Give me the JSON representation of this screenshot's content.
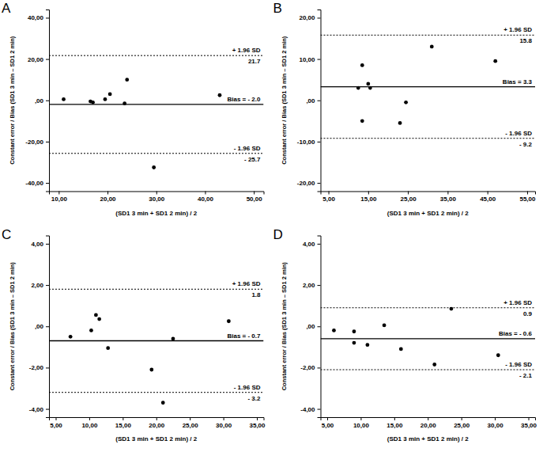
{
  "chart_data": [
    {
      "type": "scatter",
      "panel_label": "A",
      "x_label": "(SD1 3 min + SD1 2 min) / 2",
      "y_label": "Constant error / Bias (SD1 3 min – SD1 2 min)",
      "x": [
        11,
        16.5,
        17,
        19.5,
        20.5,
        23.5,
        24,
        29.5,
        43
      ],
      "values": [
        0.5,
        -0.5,
        -1,
        0.5,
        3,
        -1.5,
        10,
        -32.5,
        2.5
      ],
      "color": "#000000",
      "marker": "circle",
      "xlim": [
        8,
        52
      ],
      "xticks": [
        {
          "value": 10,
          "label": "10,00"
        },
        {
          "value": 20,
          "label": "20,00"
        },
        {
          "value": 30,
          "label": "30,00"
        },
        {
          "value": 40,
          "label": "40,00"
        },
        {
          "value": 50,
          "label": "50,00"
        }
      ],
      "ylim": [
        -44,
        44
      ],
      "yticks": [
        {
          "value": -40,
          "label": "-40,00"
        },
        {
          "value": -20,
          "label": "-20,00"
        },
        {
          "value": 0,
          "label": ",00"
        },
        {
          "value": 20,
          "label": "20,00"
        },
        {
          "value": 40,
          "label": "40,00"
        }
      ],
      "reference_lines": [
        {
          "name": "+ 1.96 SD",
          "value": 21.7,
          "label": "21.7",
          "line_style": "dotted"
        },
        {
          "value": -2.0,
          "label": "Bias = - 2.0",
          "line_style": "solid"
        },
        {
          "name": "- 1.96 SD",
          "value": -25.7,
          "label": "- 25.7",
          "line_style": "dotted"
        }
      ]
    },
    {
      "type": "scatter",
      "panel_label": "B",
      "x_label": "(SD1 3 min + SD1 2 min) / 2",
      "y_label": "Constant error / Bias (SD1 3 min – SD1 2 min)",
      "x": [
        12.5,
        13.5,
        13.5,
        15,
        15.5,
        23,
        24.5,
        31,
        47
      ],
      "values": [
        3,
        8.5,
        -5,
        4,
        3,
        -5.5,
        -0.5,
        13,
        9.5
      ],
      "color": "#000000",
      "marker": "circle",
      "xlim": [
        3,
        57
      ],
      "xticks": [
        {
          "value": 5,
          "label": "5,00"
        },
        {
          "value": 15,
          "label": "15,00"
        },
        {
          "value": 25,
          "label": "25,00"
        },
        {
          "value": 35,
          "label": "35,00"
        },
        {
          "value": 45,
          "label": "45,00"
        },
        {
          "value": 55,
          "label": "55,00"
        }
      ],
      "ylim": [
        -22,
        22
      ],
      "yticks": [
        {
          "value": -20,
          "label": "-20,00"
        },
        {
          "value": -10,
          "label": "-10,00"
        },
        {
          "value": 0,
          "label": ",00"
        },
        {
          "value": 10,
          "label": "10,00"
        },
        {
          "value": 20,
          "label": "20,00"
        }
      ],
      "reference_lines": [
        {
          "name": "+ 1.96 SD",
          "value": 15.8,
          "label": "15.8",
          "line_style": "dotted"
        },
        {
          "value": 3.3,
          "label": "Bias = 3.3",
          "line_style": "solid"
        },
        {
          "name": "- 1.96 SD",
          "value": -9.2,
          "label": "- 9.2",
          "line_style": "dotted"
        }
      ]
    },
    {
      "type": "scatter",
      "panel_label": "C",
      "x_label": "(SD1 3 min + SD1 2 min) / 2",
      "y_label": "Constant error / Bias (SD1 3 min – SD1 2 min)",
      "x": [
        7.2,
        10.3,
        11,
        11.5,
        12.8,
        19.3,
        21,
        22.5,
        30.8
      ],
      "values": [
        -0.5,
        -0.2,
        0.55,
        0.35,
        -1.05,
        -2.1,
        -3.7,
        -0.6,
        0.25
      ],
      "color": "#000000",
      "marker": "circle",
      "xlim": [
        4,
        36
      ],
      "xticks": [
        {
          "value": 5,
          "label": "5,00"
        },
        {
          "value": 10,
          "label": "10,00"
        },
        {
          "value": 15,
          "label": "15,00"
        },
        {
          "value": 20,
          "label": "20,00"
        },
        {
          "value": 25,
          "label": "25,00"
        },
        {
          "value": 30,
          "label": "30,00"
        },
        {
          "value": 35,
          "label": "35,00"
        }
      ],
      "ylim": [
        -4.4,
        4.4
      ],
      "yticks": [
        {
          "value": -4,
          "label": "-4,00"
        },
        {
          "value": -2,
          "label": "-2,00"
        },
        {
          "value": 0,
          "label": ",00"
        },
        {
          "value": 2,
          "label": "2,00"
        },
        {
          "value": 4,
          "label": "4,00"
        }
      ],
      "reference_lines": [
        {
          "name": "+ 1.96 SD",
          "value": 1.8,
          "label": "1.8",
          "line_style": "dotted"
        },
        {
          "value": -0.7,
          "label": "Bias = - 0.7",
          "line_style": "solid"
        },
        {
          "name": "- 1.96 SD",
          "value": -3.2,
          "label": "- 3.2",
          "line_style": "dotted"
        }
      ]
    },
    {
      "type": "scatter",
      "panel_label": "D",
      "x_label": "(SD1 3 min + SD1 2 min) / 2",
      "y_label": "Constant error / Bias (SD1 3 min – SD1 2 min)",
      "x": [
        6,
        9,
        9,
        11,
        13.5,
        16,
        21,
        23.5,
        30.5
      ],
      "values": [
        -0.2,
        -0.25,
        -0.8,
        -0.9,
        0.05,
        -1.1,
        -1.85,
        0.85,
        -1.4
      ],
      "color": "#000000",
      "marker": "circle",
      "xlim": [
        4,
        36
      ],
      "xticks": [
        {
          "value": 5,
          "label": "5,00"
        },
        {
          "value": 10,
          "label": "10,00"
        },
        {
          "value": 15,
          "label": "15,00"
        },
        {
          "value": 20,
          "label": "20,00"
        },
        {
          "value": 25,
          "label": "25,00"
        },
        {
          "value": 30,
          "label": "30,00"
        },
        {
          "value": 35,
          "label": "35,00"
        }
      ],
      "ylim": [
        -4.4,
        4.4
      ],
      "yticks": [
        {
          "value": -4,
          "label": "-4,00"
        },
        {
          "value": -2,
          "label": "-2,00"
        },
        {
          "value": 0,
          "label": ",00"
        },
        {
          "value": 2,
          "label": "2,00"
        },
        {
          "value": 4,
          "label": "4,00"
        }
      ],
      "reference_lines": [
        {
          "name": "+ 1.96 SD",
          "value": 0.9,
          "label": "0.9",
          "line_style": "dotted"
        },
        {
          "value": -0.6,
          "label": "Bias = - 0.6",
          "line_style": "solid"
        },
        {
          "name": "- 1.96 SD",
          "value": -2.1,
          "label": "- 2.1",
          "line_style": "dotted"
        }
      ]
    }
  ]
}
